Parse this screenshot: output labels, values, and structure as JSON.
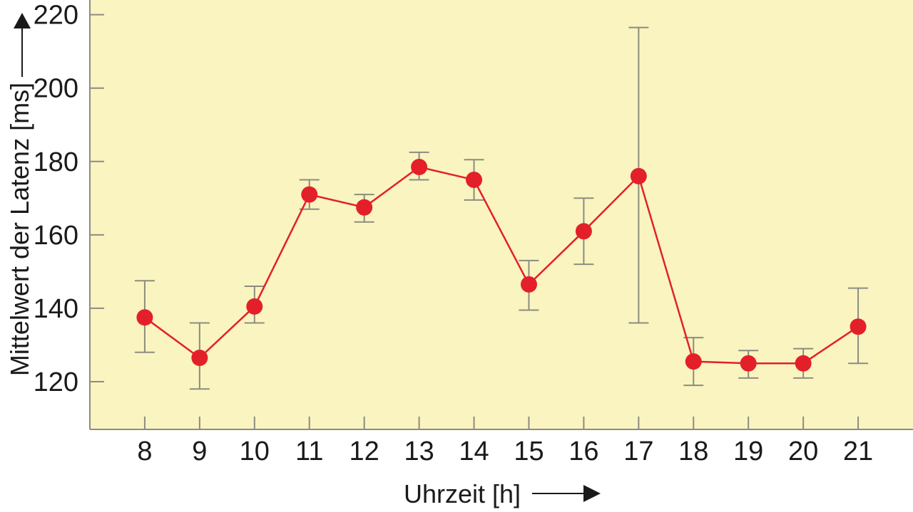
{
  "chart_data": {
    "type": "line",
    "title": "",
    "xlabel": "Uhrzeit [h]",
    "ylabel": "Mittelwert der Latenz [ms]",
    "x": [
      8,
      9,
      10,
      11,
      12,
      13,
      14,
      15,
      16,
      17,
      18,
      19,
      20,
      21
    ],
    "series": [
      {
        "values": [
          137.5,
          126.5,
          140.5,
          171,
          167.5,
          178.5,
          175,
          146.5,
          161,
          176,
          125.5,
          125,
          125,
          135
        ],
        "error_low": [
          128,
          118,
          136,
          167,
          163.5,
          175,
          169.5,
          139.5,
          152,
          136,
          119,
          121,
          121,
          125
        ],
        "error_high": [
          147.5,
          136,
          146,
          175,
          171,
          182.5,
          180.5,
          153,
          170,
          216.5,
          132,
          128.5,
          129,
          145.5
        ],
        "color": "#e3202a"
      }
    ],
    "yticks": [
      120,
      140,
      160,
      180,
      200,
      220
    ],
    "ylim": [
      107,
      224
    ],
    "xlim": [
      7,
      22
    ],
    "grid": false,
    "colors": {
      "plot_background": "#faf4c0",
      "line": "#e3202a",
      "marker": "#e3202a",
      "error_bar": "#8c8c80",
      "axis": "#8c8c80"
    }
  }
}
